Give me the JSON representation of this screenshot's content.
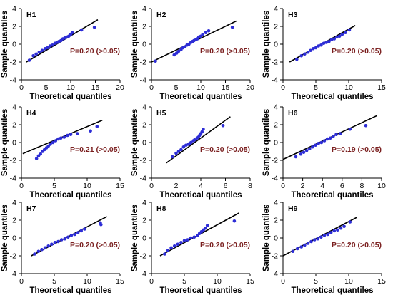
{
  "figure": {
    "colors": {
      "points": "#2d2dd6",
      "fit_line": "#000000",
      "p_text": "#7a1f1f"
    }
  },
  "chart_data": [
    {
      "type": "scatter",
      "title": "H1",
      "xlabel": "Theoretical quantiles",
      "ylabel": "Sample quantiles",
      "xlim": [
        0,
        20
      ],
      "ylim": [
        -4,
        4
      ],
      "xticks": [
        "0",
        "5",
        "10",
        "15",
        "20"
      ],
      "yticks": [
        "4",
        "2",
        "0",
        "-2",
        "-4"
      ],
      "annotation": "P=0.20 (>0.05)",
      "fit_line": {
        "x": [
          1,
          15.5
        ],
        "y": [
          -2.0,
          2.75
        ]
      },
      "x": [
        1.6,
        2.4,
        3.0,
        3.6,
        4.2,
        4.8,
        5.3,
        5.8,
        6.3,
        6.8,
        7.2,
        7.6,
        8.0,
        8.4,
        8.8,
        9.2,
        9.6,
        10.0,
        10.3,
        12.2,
        14.8
      ],
      "y": [
        -1.8,
        -1.3,
        -1.1,
        -0.9,
        -0.7,
        -0.5,
        -0.4,
        -0.2,
        -0.1,
        0.1,
        0.2,
        0.3,
        0.4,
        0.6,
        0.7,
        0.8,
        0.9,
        1.1,
        1.3,
        1.6,
        1.9
      ]
    },
    {
      "type": "scatter",
      "title": "H2",
      "xlabel": "Theoretical quantiles",
      "ylabel": "Sample quantiles",
      "xlim": [
        0,
        20
      ],
      "ylim": [
        -4,
        4
      ],
      "xticks": [
        "0",
        "5",
        "10",
        "15",
        "20"
      ],
      "yticks": [
        "4",
        "2",
        "0",
        "-2",
        "-4"
      ],
      "annotation": "P=0.20 (>0.05)",
      "fit_line": {
        "x": [
          0,
          17.2
        ],
        "y": [
          -2.0,
          2.6
        ]
      },
      "x": [
        0.8,
        4.6,
        5.1,
        5.5,
        6.0,
        6.4,
        6.8,
        7.2,
        7.6,
        8.0,
        8.3,
        8.6,
        9.0,
        9.3,
        9.6,
        10.0,
        10.4,
        11.0,
        11.6,
        16.4
      ],
      "y": [
        -1.9,
        -1.2,
        -1.0,
        -0.8,
        -0.6,
        -0.4,
        -0.3,
        -0.1,
        0.0,
        0.2,
        0.3,
        0.4,
        0.5,
        0.6,
        0.8,
        0.9,
        1.1,
        1.3,
        1.5,
        1.9
      ]
    },
    {
      "type": "scatter",
      "title": "H3",
      "xlabel": "Theoretical quantiles",
      "ylabel": "Sample quantiles",
      "xlim": [
        0,
        15
      ],
      "ylim": [
        -4,
        4
      ],
      "xticks": [
        "0",
        "5",
        "10",
        "15"
      ],
      "yticks": [
        "4",
        "2",
        "0",
        "-2",
        "-4"
      ],
      "annotation": "P=0.20 (>0.05)",
      "fit_line": {
        "x": [
          1,
          11
        ],
        "y": [
          -2.0,
          2.1
        ]
      },
      "x": [
        2.1,
        2.8,
        3.3,
        3.8,
        4.2,
        4.6,
        5.0,
        5.4,
        5.8,
        6.2,
        6.6,
        7.0,
        7.4,
        7.8,
        8.2,
        8.6,
        9.0,
        9.5,
        10.1
      ],
      "y": [
        -1.7,
        -1.3,
        -1.1,
        -0.9,
        -0.7,
        -0.5,
        -0.4,
        -0.2,
        -0.1,
        0.1,
        0.2,
        0.3,
        0.5,
        0.6,
        0.8,
        0.9,
        1.1,
        1.3,
        1.6
      ]
    },
    {
      "type": "scatter",
      "title": "H4",
      "xlabel": "Theoretical quantiles",
      "ylabel": "Sample quantiles",
      "xlim": [
        0,
        15
      ],
      "ylim": [
        -4,
        4
      ],
      "xticks": [
        "0",
        "5",
        "10",
        "15"
      ],
      "yticks": [
        "4",
        "2",
        "0",
        "-2",
        "-4"
      ],
      "annotation": "P=0.21 (>0.05)",
      "fit_line": {
        "x": [
          0.2,
          12.3
        ],
        "y": [
          -1.25,
          2.5
        ]
      },
      "x": [
        2.3,
        2.6,
        2.9,
        3.2,
        3.5,
        3.8,
        4.1,
        4.4,
        4.8,
        5.2,
        5.6,
        6.0,
        6.5,
        7.0,
        7.5,
        8.5,
        10.5,
        11.5
      ],
      "y": [
        -1.8,
        -1.5,
        -1.3,
        -1.0,
        -0.8,
        -0.6,
        -0.4,
        -0.2,
        0.0,
        0.2,
        0.4,
        0.5,
        0.6,
        0.8,
        0.9,
        1.0,
        1.3,
        1.8
      ]
    },
    {
      "type": "scatter",
      "title": "H5",
      "xlabel": "Theoretical quantiles",
      "ylabel": "Sample quantiles",
      "xlim": [
        0,
        8
      ],
      "ylim": [
        -4,
        4
      ],
      "xticks": [
        "0",
        "2",
        "4",
        "6",
        "8"
      ],
      "yticks": [
        "4",
        "2",
        "0",
        "-2",
        "-4"
      ],
      "annotation": "P=0.20 (>0.05)",
      "fit_line": {
        "x": [
          1.2,
          6.4
        ],
        "y": [
          -2.3,
          2.9
        ]
      },
      "x": [
        1.7,
        2.0,
        2.2,
        2.4,
        2.6,
        2.8,
        3.0,
        3.1,
        3.2,
        3.4,
        3.5,
        3.7,
        3.8,
        3.9,
        4.0,
        4.1,
        4.2,
        5.8
      ],
      "y": [
        -1.6,
        -1.2,
        -1.0,
        -0.8,
        -0.5,
        -0.3,
        -0.2,
        -0.1,
        0.0,
        0.2,
        0.3,
        0.5,
        0.6,
        0.8,
        1.0,
        1.2,
        1.5,
        1.9
      ]
    },
    {
      "type": "scatter",
      "title": "H6",
      "xlabel": "Theoretical quantiles",
      "ylabel": "Sample quantiles",
      "xlim": [
        0,
        10
      ],
      "ylim": [
        -4,
        4
      ],
      "xticks": [
        "0",
        "2",
        "4",
        "6",
        "8",
        "10"
      ],
      "yticks": [
        "4",
        "2",
        "0",
        "-2",
        "-4"
      ],
      "annotation": "P=0.19 (>0.05)",
      "fit_line": {
        "x": [
          0,
          9.5
        ],
        "y": [
          -1.9,
          3.0
        ]
      },
      "x": [
        1.3,
        1.8,
        2.1,
        2.4,
        2.7,
        3.0,
        3.3,
        3.6,
        3.9,
        4.2,
        4.5,
        4.8,
        5.1,
        5.4,
        5.8,
        6.8,
        8.4
      ],
      "y": [
        -1.6,
        -1.3,
        -1.1,
        -0.9,
        -0.7,
        -0.5,
        -0.3,
        -0.1,
        0.0,
        0.2,
        0.4,
        0.5,
        0.7,
        0.9,
        1.0,
        1.5,
        1.9
      ]
    },
    {
      "type": "scatter",
      "title": "H7",
      "xlabel": "Theoretical quantiles",
      "ylabel": "Sample quantiles",
      "xlim": [
        0,
        15
      ],
      "ylim": [
        -4,
        4
      ],
      "xticks": [
        "0",
        "5",
        "10",
        "15"
      ],
      "yticks": [
        "4",
        "2",
        "0",
        "-2",
        "-4"
      ],
      "annotation": "P=0.20 (>0.05)",
      "fit_line": {
        "x": [
          1.5,
          13
        ],
        "y": [
          -2.0,
          2.4
        ]
      },
      "x": [
        2.0,
        2.6,
        3.1,
        3.6,
        4.1,
        4.6,
        5.1,
        5.6,
        6.1,
        6.6,
        7.1,
        7.6,
        8.1,
        8.6,
        9.1,
        9.6,
        12.0,
        12.1
      ],
      "y": [
        -1.8,
        -1.5,
        -1.3,
        -1.1,
        -0.9,
        -0.7,
        -0.5,
        -0.4,
        -0.2,
        -0.1,
        0.1,
        0.3,
        0.4,
        0.6,
        0.8,
        1.0,
        1.7,
        1.5
      ]
    },
    {
      "type": "scatter",
      "title": "H8",
      "xlabel": "Theoretical quantiles",
      "ylabel": "Sample quantiles",
      "xlim": [
        0,
        15
      ],
      "ylim": [
        -4,
        4
      ],
      "xticks": [
        "0",
        "5",
        "10",
        "15"
      ],
      "yticks": [
        "4",
        "2",
        "0",
        "-2",
        "-4"
      ],
      "annotation": "P=0.20 (>0.05)",
      "fit_line": {
        "x": [
          1.3,
          13.3
        ],
        "y": [
          -2.0,
          2.8
        ]
      },
      "x": [
        2.0,
        2.5,
        3.0,
        3.5,
        4.0,
        4.5,
        5.0,
        5.5,
        6.0,
        6.5,
        7.0,
        7.3,
        7.6,
        7.9,
        8.2,
        8.5,
        12.6
      ],
      "y": [
        -1.8,
        -1.4,
        -1.1,
        -0.9,
        -0.7,
        -0.5,
        -0.3,
        -0.2,
        0.0,
        0.1,
        0.3,
        0.5,
        0.7,
        0.9,
        1.1,
        1.4,
        1.9
      ]
    },
    {
      "type": "scatter",
      "title": "H9",
      "xlabel": "Theoretical quantiles",
      "ylabel": "Sample quantiles",
      "xlim": [
        0,
        15
      ],
      "ylim": [
        -4,
        4
      ],
      "xticks": [
        "0",
        "5",
        "10",
        "15"
      ],
      "yticks": [
        "4",
        "2",
        "0",
        "-2",
        "-4"
      ],
      "annotation": "P=0.20 (>0.05)",
      "fit_line": {
        "x": [
          0,
          11.2
        ],
        "y": [
          -2.0,
          2.3
        ]
      },
      "x": [
        1.5,
        2.2,
        2.8,
        3.3,
        3.8,
        4.3,
        4.8,
        5.3,
        5.8,
        6.3,
        6.8,
        7.3,
        7.8,
        8.3,
        8.8,
        9.3,
        10.2
      ],
      "y": [
        -1.5,
        -1.2,
        -1.0,
        -0.8,
        -0.6,
        -0.4,
        -0.2,
        -0.1,
        0.1,
        0.3,
        0.4,
        0.6,
        0.8,
        0.9,
        1.1,
        1.3,
        1.8
      ]
    }
  ]
}
